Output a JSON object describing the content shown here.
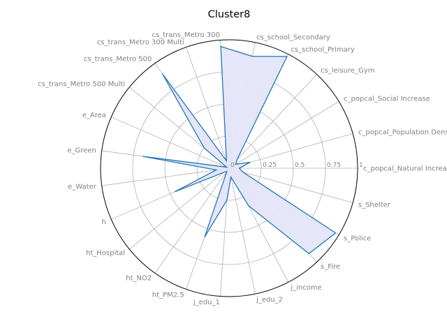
{
  "chart_data": {
    "type": "radar",
    "title": "Cluster8",
    "categories": [
      "c_popcal_Natural Increase",
      "c_popcal_Population Density",
      "c_popcal_Social Increase",
      "cs_leisure_Gym",
      "cs_school_Primary",
      "cs_school_Secondary",
      "cs_trans_Metro 300",
      "cs_trans_Metro 300 Multi",
      "cs_trans_Metro 500",
      "cs_trans_Metro 500 Multi",
      "e_Area",
      "e_Green",
      "e_Water",
      "h",
      "ht_Hospital",
      "ht_NO2",
      "ht_PM2.5",
      "j_edu_1",
      "j_edu_2",
      "j_income",
      "s_Fire",
      "s_Police",
      "s_Shelter"
    ],
    "values": [
      0.08,
      0.17,
      0.06,
      0.09,
      0.98,
      0.89,
      0.95,
      0.06,
      0.9,
      0.25,
      0.02,
      0.68,
      0.1,
      0.46,
      0.05,
      0.03,
      0.57,
      0.25,
      0.07,
      0.33,
      0.91,
      0.97,
      0.11
    ],
    "rlim": [
      0,
      1
    ],
    "rticks": [
      0,
      0.25,
      0.5,
      0.75,
      1
    ],
    "rtick_labels": [
      "0",
      "0.25",
      "0.5",
      "0.75",
      "1"
    ],
    "colors": {
      "line": "#1f77b4",
      "fill": "#e5e5fb",
      "grid": "#b0b0b0",
      "frame": "#000000",
      "label": "#808080"
    },
    "grid": true,
    "legend": false
  }
}
